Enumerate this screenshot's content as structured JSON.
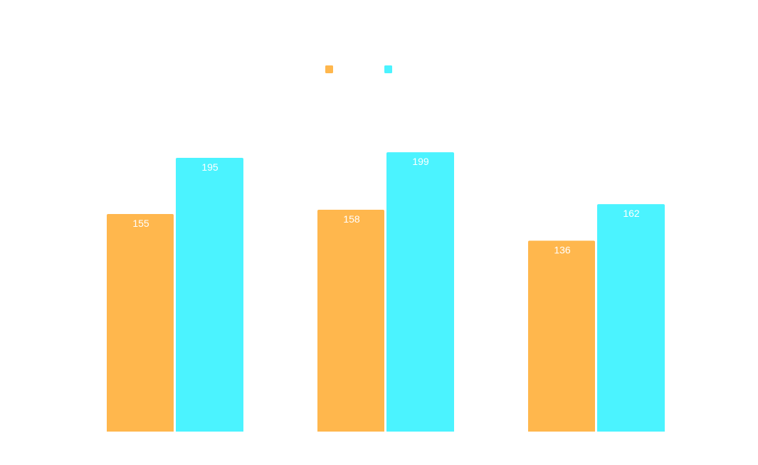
{
  "colors": {
    "background": "#ffffff",
    "series_a": "#ffb74d",
    "series_b": "#4bf3ff",
    "data_label": "#ffffff"
  },
  "chart_data": {
    "type": "bar",
    "categories": [
      "",
      "",
      ""
    ],
    "series": [
      {
        "color": "#ffb74d",
        "values": [
          155,
          158,
          136
        ]
      },
      {
        "color": "#4bf3ff",
        "values": [
          195,
          199,
          162
        ]
      }
    ],
    "ylim": [
      0,
      220
    ],
    "grid": false,
    "legend": "top-center",
    "data_labels": true
  }
}
